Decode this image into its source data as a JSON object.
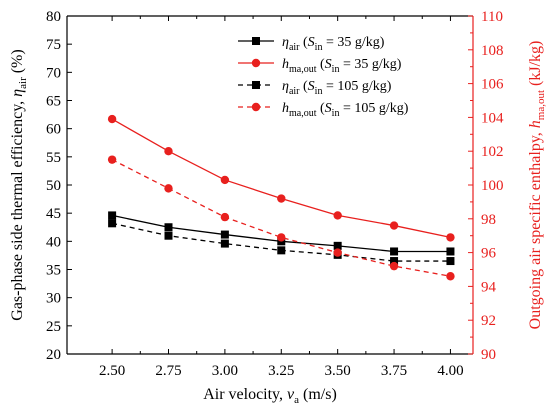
{
  "colors": {
    "left_axis": "#000000",
    "right_axis": "#e8201e",
    "series_black": "#000000",
    "series_red": "#e8201e"
  },
  "chart_data": {
    "type": "line",
    "x": [
      2.5,
      2.75,
      3.0,
      3.25,
      3.5,
      3.75,
      4.0
    ],
    "x_tick_labels": [
      "2.50",
      "2.75",
      "3.00",
      "3.25",
      "3.50",
      "3.75",
      "4.00"
    ],
    "xlim": [
      2.3,
      4.1
    ],
    "y_left": {
      "lim": [
        20,
        80
      ],
      "ticks": [
        "20",
        "25",
        "30",
        "35",
        "40",
        "45",
        "50",
        "55",
        "60",
        "65",
        "70",
        "75",
        "80"
      ]
    },
    "y_right": {
      "lim": [
        90,
        110
      ],
      "ticks": [
        "90",
        "92",
        "94",
        "96",
        "98",
        "100",
        "102",
        "104",
        "106",
        "108",
        "110"
      ]
    },
    "xlabel": {
      "main": "Air velocity, ",
      "var": "v",
      "sub": "a",
      "unit": " (m/s)"
    },
    "ylabel_left": {
      "main": "Gas-phase side thermal efficiency, ",
      "var": "η",
      "sub": "air",
      "unit": " (%)"
    },
    "ylabel_right": {
      "main": "Outgoing air specific enthalpy, ",
      "var": "h",
      "sub": "ma,out",
      "unit": " (kJ/kg)"
    },
    "grid": false,
    "legend_position": "top-right",
    "series": [
      {
        "name_var": "η",
        "name_sub": "air",
        "name_cond": " (S",
        "name_cond_sub": "in",
        "name_value": " = 35 g/kg)",
        "axis": "left",
        "color": "#000000",
        "marker": "square",
        "dashed": false,
        "values": [
          44.6,
          42.5,
          41.2,
          40.0,
          39.2,
          38.2,
          38.2
        ]
      },
      {
        "name_var": "h",
        "name_sub": "ma,out",
        "name_cond": " (S",
        "name_cond_sub": "in",
        "name_value": " = 35 g/kg)",
        "axis": "right",
        "color": "#e8201e",
        "marker": "circle",
        "dashed": false,
        "values": [
          103.9,
          102.0,
          100.3,
          99.2,
          98.2,
          97.6,
          96.9
        ]
      },
      {
        "name_var": "η",
        "name_sub": "air",
        "name_cond": " (S",
        "name_cond_sub": "in",
        "name_value": " = 105 g/kg)",
        "axis": "left",
        "color": "#000000",
        "marker": "square",
        "dashed": true,
        "values": [
          43.2,
          41.0,
          39.6,
          38.4,
          37.6,
          36.5,
          36.5
        ]
      },
      {
        "name_var": "h",
        "name_sub": "ma,out",
        "name_cond": " (S",
        "name_cond_sub": "in",
        "name_value": " = 105 g/kg)",
        "axis": "right",
        "color": "#e8201e",
        "marker": "circle",
        "dashed": true,
        "values": [
          101.5,
          99.8,
          98.1,
          96.9,
          96.0,
          95.2,
          94.6
        ]
      }
    ]
  }
}
